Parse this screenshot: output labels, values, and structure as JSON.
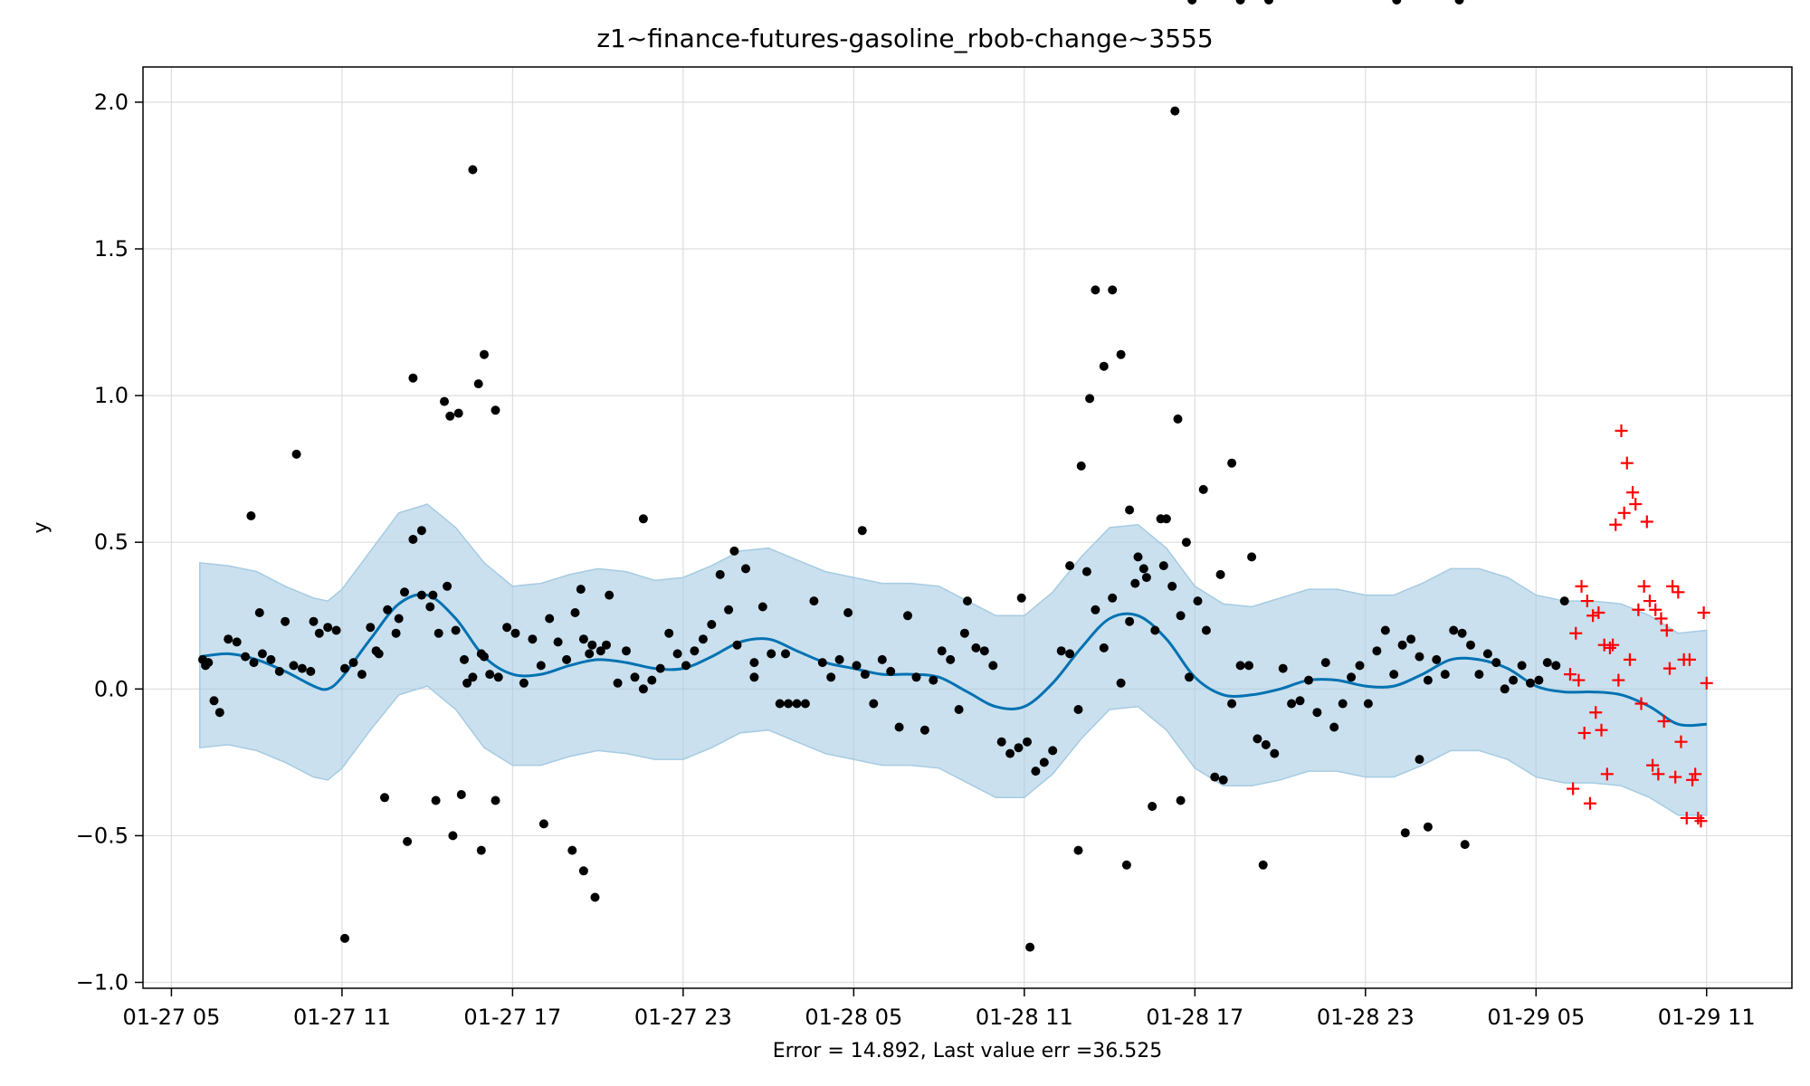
{
  "chart_data": {
    "type": "scatter",
    "title": "z1~finance-futures-gasoline_rbob-change~3555",
    "xlabel": "Error = 14.892, Last value err =36.525",
    "ylabel": "y",
    "x_ticks": [
      "01-27 05",
      "01-27 11",
      "01-27 17",
      "01-27 23",
      "01-28 05",
      "01-28 11",
      "01-28 17",
      "01-28 23",
      "01-29 05",
      "01-29 11"
    ],
    "x_tick_hours": [
      5,
      11,
      17,
      23,
      29,
      35,
      41,
      47,
      53,
      59
    ],
    "xlim_hours": [
      4.0,
      62.0
    ],
    "y_ticks": [
      "2.0",
      "1.5",
      "1.0",
      "0.5",
      "0.0",
      "−0.5",
      "−1.0"
    ],
    "y_tick_values": [
      2.0,
      1.5,
      1.0,
      0.5,
      0.0,
      -0.5,
      -1.0
    ],
    "ylim": [
      -1.02,
      2.12
    ],
    "grid": true,
    "colors": {
      "observed": "#000000",
      "forecast_line": "#0072b2",
      "uncertainty_band": "#a6cbe3",
      "test_points": "#ff0000",
      "grid": "#dddddd"
    },
    "series": [
      {
        "kind": "forecast",
        "hour": [
          6,
          7,
          8,
          9,
          10,
          10.5,
          11,
          12,
          13,
          14,
          15,
          16,
          17,
          18,
          19,
          20,
          21,
          22,
          23,
          24,
          25,
          26,
          27,
          28,
          29,
          30,
          31,
          32,
          33,
          34,
          35,
          36,
          37,
          38,
          39,
          40,
          41,
          42,
          43,
          44,
          45,
          46,
          47,
          48,
          49,
          50,
          51,
          52,
          53,
          54,
          55,
          56,
          57,
          58,
          59
        ],
        "value": [
          0.11,
          0.12,
          0.1,
          0.06,
          0.01,
          0.0,
          0.04,
          0.17,
          0.29,
          0.32,
          0.24,
          0.11,
          0.05,
          0.05,
          0.08,
          0.1,
          0.09,
          0.07,
          0.07,
          0.11,
          0.16,
          0.17,
          0.13,
          0.09,
          0.07,
          0.05,
          0.05,
          0.04,
          -0.01,
          -0.06,
          -0.06,
          0.02,
          0.14,
          0.24,
          0.25,
          0.17,
          0.04,
          -0.02,
          -0.02,
          0.0,
          0.03,
          0.03,
          0.01,
          0.01,
          0.05,
          0.1,
          0.1,
          0.07,
          0.01,
          -0.01,
          -0.01,
          -0.02,
          -0.06,
          -0.12,
          -0.12
        ],
        "upper": [
          0.43,
          0.42,
          0.4,
          0.35,
          0.31,
          0.3,
          0.34,
          0.47,
          0.6,
          0.63,
          0.55,
          0.43,
          0.35,
          0.36,
          0.39,
          0.41,
          0.4,
          0.37,
          0.38,
          0.42,
          0.47,
          0.48,
          0.44,
          0.4,
          0.38,
          0.36,
          0.36,
          0.35,
          0.3,
          0.25,
          0.25,
          0.33,
          0.45,
          0.55,
          0.56,
          0.48,
          0.35,
          0.29,
          0.28,
          0.31,
          0.34,
          0.34,
          0.32,
          0.32,
          0.36,
          0.41,
          0.41,
          0.38,
          0.32,
          0.3,
          0.3,
          0.29,
          0.25,
          0.19,
          0.2
        ],
        "lower": [
          -0.2,
          -0.19,
          -0.21,
          -0.25,
          -0.3,
          -0.31,
          -0.27,
          -0.14,
          -0.02,
          0.01,
          -0.07,
          -0.2,
          -0.26,
          -0.26,
          -0.23,
          -0.21,
          -0.22,
          -0.24,
          -0.24,
          -0.2,
          -0.15,
          -0.14,
          -0.18,
          -0.22,
          -0.24,
          -0.26,
          -0.26,
          -0.27,
          -0.32,
          -0.37,
          -0.37,
          -0.29,
          -0.17,
          -0.07,
          -0.06,
          -0.14,
          -0.27,
          -0.33,
          -0.33,
          -0.31,
          -0.28,
          -0.28,
          -0.3,
          -0.3,
          -0.26,
          -0.21,
          -0.21,
          -0.24,
          -0.3,
          -0.32,
          -0.32,
          -0.33,
          -0.37,
          -0.43,
          -0.43
        ]
      },
      {
        "kind": "observed",
        "hour": [
          6.1,
          6.2,
          6.3,
          6.5,
          6.7,
          7.0,
          7.3,
          7.6,
          7.9,
          8.2,
          8.5,
          8.8,
          9.0,
          9.3,
          9.6,
          9.9,
          10.2,
          10.5,
          10.8,
          11.1,
          11.4,
          11.7,
          12.0,
          12.3,
          12.6,
          12.9,
          13.2,
          13.5,
          13.8,
          14.1,
          14.4,
          14.7,
          15.0,
          15.3,
          15.6,
          15.9,
          16.2,
          16.5,
          16.8,
          17.1,
          17.4,
          17.7,
          18.0,
          18.3,
          18.6,
          18.9,
          19.2,
          19.5,
          19.8,
          20.1,
          20.4,
          20.7,
          21.0,
          21.3,
          21.6,
          21.9,
          22.2,
          22.5,
          22.8,
          23.1,
          23.4,
          23.7,
          24.0,
          24.3,
          24.6,
          24.9,
          25.2,
          25.5,
          25.8,
          26.1,
          26.4,
          26.7,
          27.0,
          27.3,
          27.6,
          27.9,
          28.2,
          28.5,
          28.8,
          29.1,
          29.4,
          29.7,
          30.0,
          30.3,
          30.6,
          30.9,
          31.2,
          31.5,
          31.8,
          32.1,
          32.4,
          32.7,
          33.0,
          33.3,
          33.6,
          33.9,
          34.2,
          34.5,
          34.8,
          35.1,
          35.4,
          35.7,
          36.0,
          36.3,
          36.6,
          36.9,
          37.2,
          37.5,
          37.8,
          38.1,
          38.4,
          38.7,
          39.0,
          39.3,
          39.6,
          39.9,
          40.2,
          40.5,
          40.8,
          41.1,
          41.4,
          41.7,
          42.0,
          42.3,
          42.6,
          42.9,
          43.2,
          43.5,
          43.8,
          44.1,
          44.4,
          44.7,
          45.0,
          45.3,
          45.6,
          45.9,
          46.2,
          46.5,
          46.8,
          47.1,
          47.4,
          47.7,
          48.0,
          48.3,
          48.6,
          48.9,
          49.2,
          49.5,
          49.8,
          50.1,
          50.4,
          50.7,
          51.0,
          51.3,
          51.6,
          51.9,
          52.2,
          52.5,
          52.8,
          53.1,
          53.4,
          53.7,
          54.0,
          7.8,
          8.1,
          9.4,
          10.0,
          12.2,
          13.0,
          13.8,
          14.2,
          14.6,
          15.1,
          15.4,
          16.0,
          16.4,
          19.4,
          19.7,
          20.3,
          21.6,
          24.8,
          25.5,
          26.6,
          29.3,
          32.9,
          34.9,
          36.6,
          37.0,
          37.3,
          37.5,
          37.8,
          38.1,
          38.4,
          38.7,
          38.9,
          39.2,
          39.8,
          40.0,
          40.4,
          40.7,
          41.3,
          41.9,
          42.3,
          43.0,
          43.4,
          48.4,
          48.9,
          49.2,
          50.5,
          11.1,
          12.5,
          13.3,
          14.3,
          14.9,
          15.2,
          15.9,
          16.4,
          18.1,
          19.1,
          19.5,
          19.9,
          35.2,
          36.9,
          38.6,
          39.5,
          40.5,
          40.9,
          42.6,
          43.6,
          48.1,
          50.3
        ],
        "value": [
          0.1,
          0.08,
          0.09,
          -0.04,
          -0.08,
          0.17,
          0.16,
          0.11,
          0.09,
          0.12,
          0.1,
          0.06,
          0.23,
          0.08,
          0.07,
          0.06,
          0.19,
          0.21,
          0.2,
          0.07,
          0.09,
          0.05,
          0.21,
          0.12,
          0.27,
          0.19,
          0.33,
          0.51,
          0.32,
          0.28,
          0.19,
          0.35,
          0.2,
          0.1,
          0.04,
          0.12,
          0.05,
          0.04,
          0.21,
          0.19,
          0.02,
          0.17,
          0.08,
          0.24,
          0.16,
          0.1,
          0.26,
          0.17,
          0.15,
          0.13,
          0.32,
          0.02,
          0.13,
          0.04,
          0.0,
          0.03,
          0.07,
          0.19,
          0.12,
          0.08,
          0.13,
          0.17,
          0.22,
          0.39,
          0.27,
          0.15,
          0.41,
          0.09,
          0.28,
          0.12,
          -0.05,
          -0.05,
          -0.05,
          -0.05,
          0.3,
          0.09,
          0.04,
          0.1,
          0.26,
          0.08,
          0.05,
          -0.05,
          0.1,
          0.06,
          -0.13,
          0.25,
          0.04,
          -0.14,
          0.03,
          0.13,
          0.1,
          -0.07,
          0.3,
          0.14,
          0.13,
          0.08,
          -0.18,
          -0.22,
          -0.2,
          -0.18,
          -0.28,
          -0.25,
          -0.21,
          0.13,
          0.12,
          -0.07,
          0.4,
          0.27,
          0.14,
          0.31,
          0.02,
          0.23,
          0.45,
          0.38,
          0.2,
          0.42,
          0.35,
          0.25,
          0.04,
          0.3,
          0.2,
          -0.3,
          -0.31,
          -0.05,
          0.08,
          0.08,
          -0.17,
          -0.19,
          -0.22,
          0.07,
          -0.05,
          -0.04,
          0.03,
          -0.08,
          0.09,
          -0.13,
          -0.05,
          0.04,
          0.08,
          -0.05,
          0.13,
          0.2,
          0.05,
          0.15,
          0.17,
          0.11,
          0.03,
          0.1,
          0.05,
          0.2,
          0.19,
          0.15,
          0.05,
          0.12,
          0.09,
          0.0,
          0.03,
          0.08,
          0.02,
          0.03,
          0.09,
          0.08,
          0.3,
          0.59,
          0.26,
          0.8,
          0.23,
          0.13,
          0.24,
          0.54,
          0.32,
          0.98,
          0.94,
          0.02,
          0.11,
          0.95,
          0.34,
          0.12,
          0.15,
          0.58,
          0.47,
          0.04,
          0.12,
          0.54,
          0.19,
          0.31,
          0.42,
          0.76,
          0.99,
          1.36,
          1.1,
          1.36,
          1.14,
          0.61,
          0.36,
          0.41,
          0.58,
          0.58,
          0.92,
          0.5,
          0.68,
          0.39,
          0.77,
          0.45,
          -0.6,
          -0.49,
          -0.24,
          -0.47,
          -0.53,
          -0.85,
          -0.37,
          -0.52,
          -0.38,
          -0.5,
          -0.36,
          -0.55,
          -0.38,
          -0.46,
          -0.55,
          -0.62,
          -0.71,
          -0.88,
          -0.55,
          -0.6,
          -0.4,
          -0.38
        ],
        "extremes": [
          {
            "hour": 15.6,
            "value": 1.77
          },
          {
            "hour": 13.5,
            "value": 1.06
          },
          {
            "hour": 14.8,
            "value": 0.93
          },
          {
            "hour": 16.0,
            "value": 1.14
          },
          {
            "hour": 15.8,
            "value": 1.04
          },
          {
            "hour": 40.3,
            "value": 1.97
          }
        ]
      },
      {
        "kind": "test",
        "hour": [
          54.2,
          54.4,
          54.6,
          54.8,
          55.0,
          55.2,
          55.4,
          55.6,
          55.8,
          56.0,
          56.2,
          56.4,
          56.6,
          56.8,
          57.0,
          57.2,
          57.4,
          57.6,
          57.8,
          58.0,
          58.2,
          58.4,
          58.6,
          58.8,
          59.0,
          54.3,
          54.7,
          55.1,
          55.5,
          55.9,
          56.3,
          56.7,
          57.1,
          57.5,
          57.9,
          58.3,
          58.7,
          54.5,
          54.9,
          55.3,
          55.7,
          56.1,
          56.5,
          56.9,
          57.3,
          57.7,
          58.1,
          58.5,
          58.9
        ],
        "value": [
          0.05,
          0.19,
          0.35,
          0.3,
          0.25,
          0.26,
          0.15,
          0.14,
          0.56,
          0.88,
          0.77,
          0.67,
          0.27,
          0.35,
          0.3,
          0.27,
          0.24,
          0.2,
          0.35,
          0.33,
          0.1,
          0.1,
          -0.29,
          -0.45,
          0.02,
          -0.34,
          -0.15,
          -0.08,
          -0.29,
          0.03,
          0.1,
          -0.05,
          -0.26,
          -0.11,
          -0.3,
          -0.44,
          -0.44,
          0.03,
          -0.39,
          -0.14,
          0.15,
          0.6,
          0.63,
          0.57,
          -0.29,
          0.07,
          -0.18,
          -0.31,
          0.26
        ]
      }
    ]
  }
}
